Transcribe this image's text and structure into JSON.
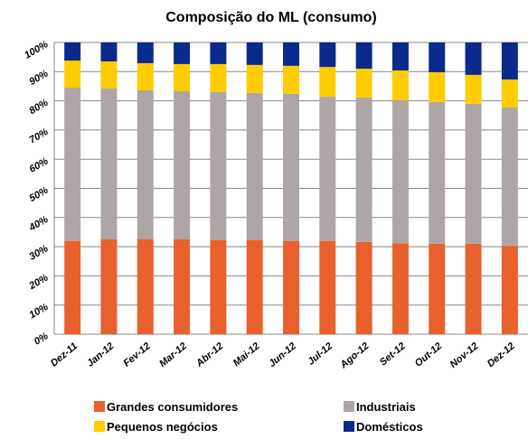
{
  "chart_data": {
    "type": "stacked_bar",
    "title": "Composição do ML (consumo)",
    "categories": [
      "Dez-11",
      "Jan-12",
      "Fev-12",
      "Mar-12",
      "Abr-12",
      "Mai-12",
      "Jun-12",
      "Jul-12",
      "Ago-12",
      "Set-12",
      "Out-12",
      "Nov-12",
      "Dez-12"
    ],
    "series": [
      {
        "name": "Grandes consumidores",
        "color": "#e8612c",
        "values": [
          32,
          32.5,
          32.5,
          32.5,
          32.3,
          32.3,
          32,
          32,
          31.6,
          31.2,
          31,
          31,
          30.3
        ]
      },
      {
        "name": "Industriais",
        "color": "#aea6a6",
        "values": [
          52.5,
          51.7,
          51.1,
          50.8,
          50.7,
          50.4,
          50.4,
          49.4,
          49.5,
          49,
          48.6,
          48,
          47.4
        ]
      },
      {
        "name": "Pequenos negócios",
        "color": "#ffcc00",
        "values": [
          9.3,
          9.3,
          9.3,
          9.3,
          9.6,
          9.6,
          9.6,
          10.2,
          9.9,
          10.2,
          10.2,
          9.9,
          9.6
        ]
      },
      {
        "name": "Domésticos",
        "color": "#0a2a8c",
        "values": [
          6.2,
          6.5,
          7.1,
          7.4,
          7.4,
          7.7,
          8,
          8.4,
          9,
          9.6,
          10.2,
          11.1,
          12.7
        ]
      }
    ],
    "ylim": [
      0,
      100
    ],
    "yticks": [
      {
        "value": 0,
        "label": "0%"
      },
      {
        "value": 10,
        "label": "10%"
      },
      {
        "value": 20,
        "label": "20%"
      },
      {
        "value": 30,
        "label": "30%"
      },
      {
        "value": 40,
        "label": "40%"
      },
      {
        "value": 50,
        "label": "50%"
      },
      {
        "value": 60,
        "label": "60%"
      },
      {
        "value": 70,
        "label": "70%"
      },
      {
        "value": 80,
        "label": "80%"
      },
      {
        "value": 90,
        "label": "90%"
      },
      {
        "value": 100,
        "label": "100%"
      }
    ],
    "grid": true
  }
}
